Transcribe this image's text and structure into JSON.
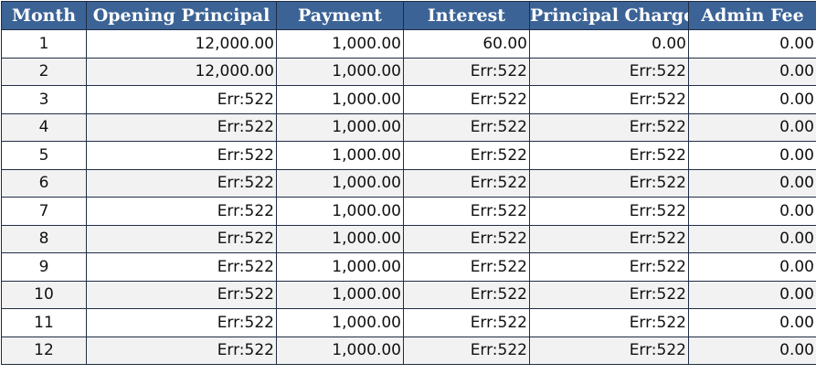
{
  "headers": [
    "Month",
    "Opening Principal",
    "Payment",
    "Interest",
    "Principal Charge",
    "Admin Fee"
  ],
  "rows": [
    [
      "1",
      "12,000.00",
      "1,000.00",
      "60.00",
      "0.00",
      "0.00"
    ],
    [
      "2",
      "12,000.00",
      "1,000.00",
      "Err:522",
      "Err:522",
      "0.00"
    ],
    [
      "3",
      "Err:522",
      "1,000.00",
      "Err:522",
      "Err:522",
      "0.00"
    ],
    [
      "4",
      "Err:522",
      "1,000.00",
      "Err:522",
      "Err:522",
      "0.00"
    ],
    [
      "5",
      "Err:522",
      "1,000.00",
      "Err:522",
      "Err:522",
      "0.00"
    ],
    [
      "6",
      "Err:522",
      "1,000.00",
      "Err:522",
      "Err:522",
      "0.00"
    ],
    [
      "7",
      "Err:522",
      "1,000.00",
      "Err:522",
      "Err:522",
      "0.00"
    ],
    [
      "8",
      "Err:522",
      "1,000.00",
      "Err:522",
      "Err:522",
      "0.00"
    ],
    [
      "9",
      "Err:522",
      "1,000.00",
      "Err:522",
      "Err:522",
      "0.00"
    ],
    [
      "10",
      "Err:522",
      "1,000.00",
      "Err:522",
      "Err:522",
      "0.00"
    ],
    [
      "11",
      "Err:522",
      "1,000.00",
      "Err:522",
      "Err:522",
      "0.00"
    ],
    [
      "12",
      "Err:522",
      "1,000.00",
      "Err:522",
      "Err:522",
      "0.00"
    ]
  ],
  "colors": {
    "header_bg": "#3c6396",
    "header_text": "#ffffff",
    "alt_row_bg": "#f2f2f2",
    "border": "#1f2d44"
  }
}
